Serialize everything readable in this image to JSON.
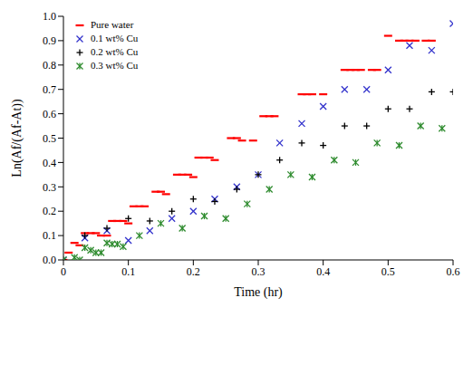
{
  "chart_data": {
    "type": "scatter",
    "xlabel": "Time (hr)",
    "ylabel": "Ln(Af/(Af-At))",
    "xlim": [
      0,
      0.6
    ],
    "xticks": [
      0,
      0.1,
      0.2,
      0.3,
      0.4,
      0.5,
      0.6
    ],
    "ylim": [
      0,
      1
    ],
    "yticks": [
      {
        "value": 0,
        "label": "0.0"
      },
      0.1,
      0.2,
      0.3,
      0.4,
      0.5,
      0.6,
      0.7,
      0.8,
      0.9,
      {
        "value": 1,
        "label": "1.0"
      }
    ],
    "grid": false,
    "legend": "upper left",
    "series": [
      {
        "name": "Pure water",
        "color": "#ff0000",
        "marker": "dash",
        "x": [
          0,
          0.008,
          0.017,
          0.025,
          0.033,
          0.042,
          0.05,
          0.058,
          0.067,
          0.075,
          0.083,
          0.092,
          0.1,
          0.108,
          0.117,
          0.125,
          0.142,
          0.15,
          0.158,
          0.175,
          0.183,
          0.192,
          0.2,
          0.208,
          0.217,
          0.225,
          0.233,
          0.258,
          0.267,
          0.275,
          0.292,
          0.308,
          0.317,
          0.325,
          0.367,
          0.375,
          0.383,
          0.4,
          0.433,
          0.442,
          0.45,
          0.458,
          0.475,
          0.483,
          0.5,
          0.517,
          0.525,
          0.533,
          0.542,
          0.558,
          0.567
        ],
        "values": [
          0,
          0.03,
          0.07,
          0.06,
          0.11,
          0.11,
          0.11,
          0.1,
          0.1,
          0.16,
          0.16,
          0.16,
          0.15,
          0.22,
          0.22,
          0.22,
          0.28,
          0.28,
          0.27,
          0.35,
          0.35,
          0.35,
          0.34,
          0.42,
          0.42,
          0.42,
          0.41,
          0.5,
          0.5,
          0.49,
          0.49,
          0.59,
          0.59,
          0.59,
          0.68,
          0.68,
          0.68,
          0.68,
          0.78,
          0.78,
          0.78,
          0.78,
          0.78,
          0.78,
          0.92,
          0.9,
          0.9,
          0.9,
          0.9,
          0.9,
          0.9
        ]
      },
      {
        "name": "0.1 wt% Cu",
        "color": "#3333cc",
        "marker": "x",
        "x": [
          0,
          0.033,
          0.067,
          0.1,
          0.133,
          0.167,
          0.2,
          0.233,
          0.267,
          0.3,
          0.333,
          0.367,
          0.4,
          0.433,
          0.467,
          0.5,
          0.533,
          0.567,
          0.6
        ],
        "values": [
          0,
          0.09,
          0.12,
          0.08,
          0.12,
          0.17,
          0.2,
          0.25,
          0.3,
          0.35,
          0.48,
          0.56,
          0.63,
          0.7,
          0.7,
          0.78,
          0.88,
          0.86,
          0.97
        ]
      },
      {
        "name": "0.2 wt% Cu",
        "color": "#000000",
        "marker": "plus",
        "x": [
          0,
          0.033,
          0.067,
          0.1,
          0.133,
          0.167,
          0.2,
          0.233,
          0.267,
          0.3,
          0.333,
          0.367,
          0.4,
          0.433,
          0.467,
          0.5,
          0.533,
          0.567,
          0.6
        ],
        "values": [
          0,
          0.1,
          0.13,
          0.17,
          0.16,
          0.2,
          0.25,
          0.24,
          0.29,
          0.35,
          0.41,
          0.48,
          0.47,
          0.55,
          0.55,
          0.62,
          0.62,
          0.69,
          0.69
        ]
      },
      {
        "name": "0.3 wt% Cu",
        "color": "#2e8b2e",
        "marker": "star",
        "x": [
          0,
          0.017,
          0.025,
          0.033,
          0.042,
          0.05,
          0.058,
          0.067,
          0.075,
          0.083,
          0.092,
          0.117,
          0.15,
          0.183,
          0.217,
          0.25,
          0.283,
          0.317,
          0.35,
          0.383,
          0.417,
          0.45,
          0.483,
          0.517,
          0.55,
          0.583
        ],
        "values": [
          0,
          0.01,
          0,
          0.05,
          0.04,
          0.03,
          0.03,
          0.07,
          0.065,
          0.065,
          0.055,
          0.1,
          0.15,
          0.13,
          0.18,
          0.17,
          0.23,
          0.29,
          0.35,
          0.34,
          0.41,
          0.4,
          0.48,
          0.47,
          0.55,
          0.54
        ]
      }
    ]
  }
}
